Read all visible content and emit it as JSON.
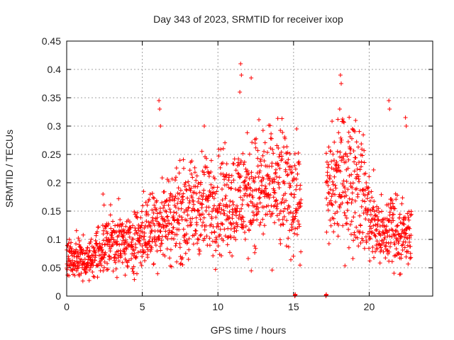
{
  "chart_data": {
    "type": "scatter",
    "title": "Day 343 of 2023, SRMTID for receiver ixop",
    "xlabel": "GPS time / hours",
    "ylabel": "SRMTID / TECUs",
    "xlim": [
      0,
      24.2
    ],
    "ylim": [
      0,
      0.45
    ],
    "xticks": [
      0,
      5,
      10,
      15,
      20
    ],
    "yticks": [
      0,
      0.05,
      0.1,
      0.15,
      0.2,
      0.25,
      0.3,
      0.35,
      0.4,
      0.45
    ],
    "ytick_labels": [
      "0",
      "0.05",
      "0.1",
      "0.15",
      "0.2",
      "0.25",
      "0.3",
      "0.35",
      "0.4",
      "0.45"
    ],
    "grid": true,
    "marker": "+",
    "color": "#ff0000",
    "series": [
      {
        "name": "SRMTID",
        "segments": [
          {
            "from": 0.0,
            "to": 15.5,
            "step": 0.012,
            "baseline": [
              [
                0,
                0.07
              ],
              [
                1,
                0.065
              ],
              [
                1.5,
                0.06
              ],
              [
                2,
                0.08
              ],
              [
                3,
                0.1
              ],
              [
                4,
                0.09
              ],
              [
                5,
                0.11
              ],
              [
                6,
                0.13
              ],
              [
                7,
                0.14
              ],
              [
                8,
                0.15
              ],
              [
                9,
                0.16
              ],
              [
                10,
                0.17
              ],
              [
                11,
                0.17
              ],
              [
                12,
                0.18
              ],
              [
                13,
                0.19
              ],
              [
                14,
                0.19
              ],
              [
                15,
                0.18
              ],
              [
                15.5,
                0.17
              ]
            ]
          },
          {
            "from": 17.15,
            "to": 22.8,
            "step": 0.012,
            "baseline": [
              [
                17.15,
                0.17
              ],
              [
                18,
                0.21
              ],
              [
                19,
                0.21
              ],
              [
                19.5,
                0.19
              ],
              [
                20,
                0.14
              ],
              [
                20.5,
                0.12
              ],
              [
                21,
                0.1
              ],
              [
                21.5,
                0.13
              ],
              [
                22,
                0.11
              ],
              [
                22.8,
                0.1
              ]
            ]
          }
        ],
        "spikes": [
          {
            "x": 6.1,
            "y": 0.345
          },
          {
            "x": 6.15,
            "y": 0.33
          },
          {
            "x": 6.2,
            "y": 0.3
          },
          {
            "x": 11.5,
            "y": 0.41
          },
          {
            "x": 11.55,
            "y": 0.39
          },
          {
            "x": 11.45,
            "y": 0.36
          },
          {
            "x": 12.2,
            "y": 0.385
          },
          {
            "x": 9.1,
            "y": 0.3
          },
          {
            "x": 2.4,
            "y": 0.18
          },
          {
            "x": 18.1,
            "y": 0.39
          },
          {
            "x": 18.15,
            "y": 0.375
          },
          {
            "x": 18.05,
            "y": 0.33
          },
          {
            "x": 19.1,
            "y": 0.31
          },
          {
            "x": 21.3,
            "y": 0.345
          },
          {
            "x": 21.35,
            "y": 0.33
          },
          {
            "x": 22.4,
            "y": 0.315
          },
          {
            "x": 22.45,
            "y": 0.3
          }
        ],
        "zeros": [
          {
            "x": 15.1,
            "y": 0.0
          },
          {
            "x": 17.15,
            "y": 0.0
          }
        ]
      }
    ]
  }
}
